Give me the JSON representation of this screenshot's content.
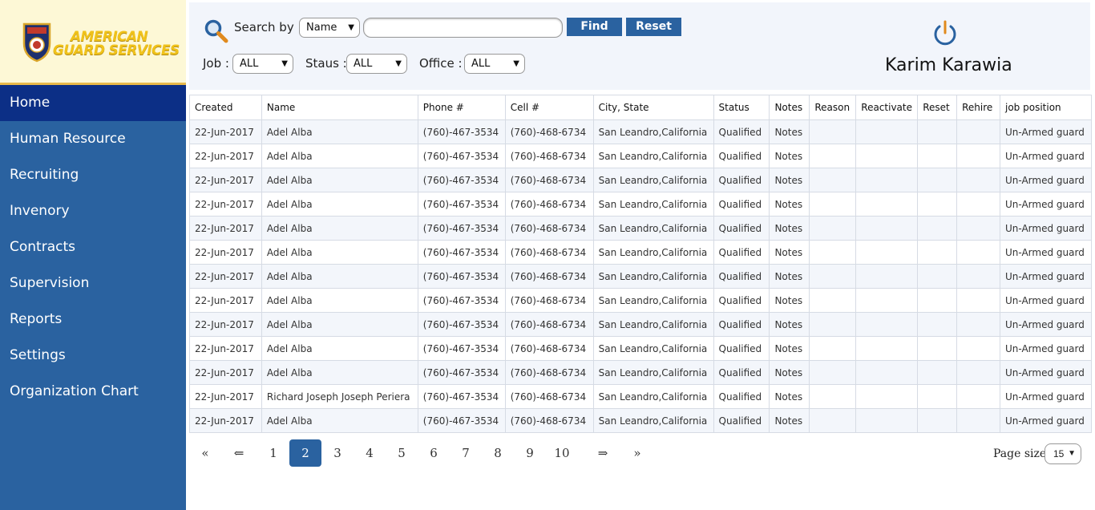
{
  "brand": {
    "line1": "AMERICAN",
    "line2": "GUARD SERVICES"
  },
  "nav": {
    "items": [
      {
        "label": "Home",
        "active": true
      },
      {
        "label": "Human Resource"
      },
      {
        "label": "Recruiting"
      },
      {
        "label": "Invenory"
      },
      {
        "label": "Contracts"
      },
      {
        "label": "Supervision"
      },
      {
        "label": "Reports"
      },
      {
        "label": "Settings"
      },
      {
        "label": "Organization Chart"
      }
    ]
  },
  "filters": {
    "search_by_label": "Search by :",
    "search_by_value": "Name",
    "search_value": "",
    "find_label": "Find",
    "reset_label": "Reset",
    "job_label": "Job :",
    "job_value": "ALL",
    "status_label": "Staus :",
    "status_value": "ALL",
    "office_label": "Office :",
    "office_value": "ALL"
  },
  "user": {
    "name": "Karim Karawia"
  },
  "table": {
    "columns": [
      "Created",
      "Name",
      "Phone #",
      "Cell #",
      "City, State",
      "Status",
      "Notes",
      "Reason",
      "Reactivate",
      "Reset",
      "Rehire",
      "job position"
    ],
    "rows": [
      [
        "22-Jun-2017",
        "Adel Alba",
        "(760)-467-3534",
        "(760)-468-6734",
        "San Leandro,California",
        "Qualified",
        "Notes",
        "",
        "",
        "",
        "",
        "Un-Armed guard"
      ],
      [
        "22-Jun-2017",
        "Adel Alba",
        "(760)-467-3534",
        "(760)-468-6734",
        "San Leandro,California",
        "Qualified",
        "Notes",
        "",
        "",
        "",
        "",
        "Un-Armed guard"
      ],
      [
        "22-Jun-2017",
        "Adel Alba",
        "(760)-467-3534",
        "(760)-468-6734",
        "San Leandro,California",
        "Qualified",
        "Notes",
        "",
        "",
        "",
        "",
        "Un-Armed guard"
      ],
      [
        "22-Jun-2017",
        "Adel Alba",
        "(760)-467-3534",
        "(760)-468-6734",
        "San Leandro,California",
        "Qualified",
        "Notes",
        "",
        "",
        "",
        "",
        "Un-Armed guard"
      ],
      [
        "22-Jun-2017",
        "Adel Alba",
        "(760)-467-3534",
        "(760)-468-6734",
        "San Leandro,California",
        "Qualified",
        "Notes",
        "",
        "",
        "",
        "",
        "Un-Armed guard"
      ],
      [
        "22-Jun-2017",
        "Adel Alba",
        "(760)-467-3534",
        "(760)-468-6734",
        "San Leandro,California",
        "Qualified",
        "Notes",
        "",
        "",
        "",
        "",
        "Un-Armed guard"
      ],
      [
        "22-Jun-2017",
        "Adel Alba",
        "(760)-467-3534",
        "(760)-468-6734",
        "San Leandro,California",
        "Qualified",
        "Notes",
        "",
        "",
        "",
        "",
        "Un-Armed guard"
      ],
      [
        "22-Jun-2017",
        "Adel Alba",
        "(760)-467-3534",
        "(760)-468-6734",
        "San Leandro,California",
        "Qualified",
        "Notes",
        "",
        "",
        "",
        "",
        "Un-Armed guard"
      ],
      [
        "22-Jun-2017",
        "Adel Alba",
        "(760)-467-3534",
        "(760)-468-6734",
        "San Leandro,California",
        "Qualified",
        "Notes",
        "",
        "",
        "",
        "",
        "Un-Armed guard"
      ],
      [
        "22-Jun-2017",
        "Adel Alba",
        "(760)-467-3534",
        "(760)-468-6734",
        "San Leandro,California",
        "Qualified",
        "Notes",
        "",
        "",
        "",
        "",
        "Un-Armed guard"
      ],
      [
        "22-Jun-2017",
        "Adel Alba",
        "(760)-467-3534",
        "(760)-468-6734",
        "San Leandro,California",
        "Qualified",
        "Notes",
        "",
        "",
        "",
        "",
        "Un-Armed guard"
      ],
      [
        "22-Jun-2017",
        "Richard Joseph Joseph Periera",
        "(760)-467-3534",
        "(760)-468-6734",
        "San Leandro,California",
        "Qualified",
        "Notes",
        "",
        "",
        "",
        "",
        "Un-Armed guard"
      ],
      [
        "22-Jun-2017",
        "Adel Alba",
        "(760)-467-3534",
        "(760)-468-6734",
        "San Leandro,California",
        "Qualified",
        "Notes",
        "",
        "",
        "",
        "",
        "Un-Armed guard"
      ]
    ]
  },
  "pagination": {
    "first": "«",
    "prev": "⇐",
    "pages": [
      "1",
      "2",
      "3",
      "4",
      "5",
      "6",
      "7",
      "8",
      "9",
      "10"
    ],
    "current": "2",
    "next": "⇒",
    "last": "»",
    "page_size_label": "Page size",
    "page_size_value": "15"
  },
  "colors": {
    "sidebar": "#2a62a0",
    "active_nav": "#0c2f86",
    "accent": "#2a62a0",
    "logo_bg": "#fdf8d6"
  },
  "icons": {
    "search": "search-icon",
    "power": "power-icon",
    "logo": "shield-logo-icon"
  }
}
